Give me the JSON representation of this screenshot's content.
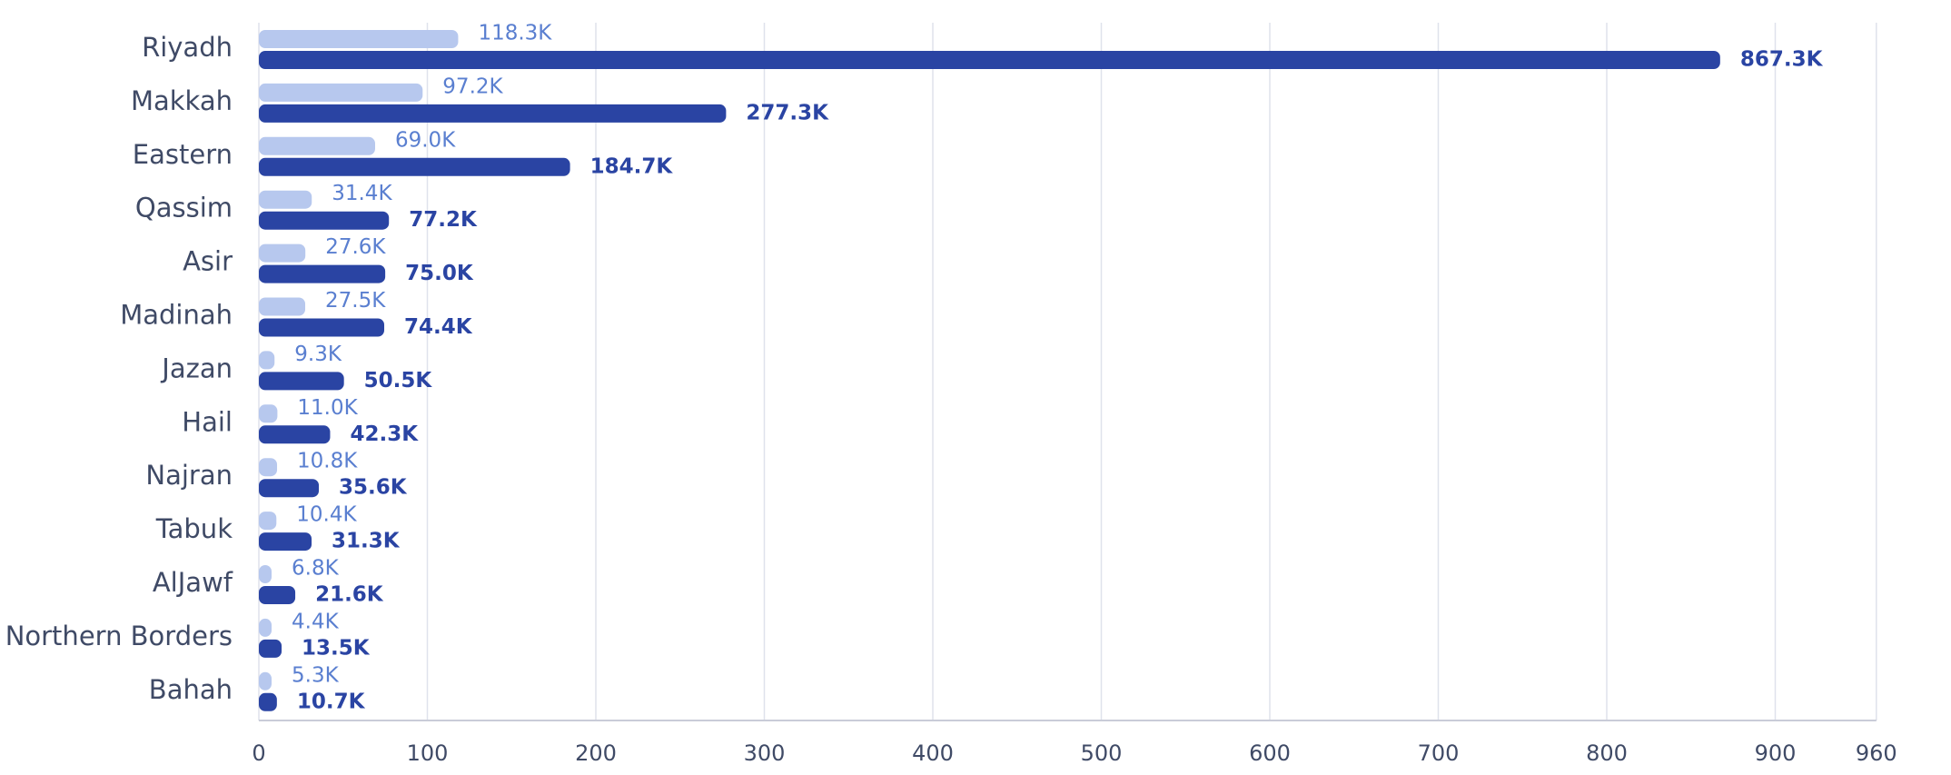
{
  "chart_data": {
    "type": "bar",
    "orientation": "horizontal",
    "title": "",
    "xlabel": "",
    "ylabel": "",
    "xlim": [
      0,
      960
    ],
    "x_ticks": [
      0,
      100,
      200,
      300,
      400,
      500,
      600,
      700,
      800,
      900,
      960
    ],
    "grid": true,
    "categories": [
      "Riyadh",
      "Makkah",
      "Eastern",
      "Qassim",
      "Asir",
      "Madinah",
      "Jazan",
      "Hail",
      "Najran",
      "Tabuk",
      "AlJawf",
      "Northern Borders",
      "Bahah"
    ],
    "series": [
      {
        "color": "#b7c8ee",
        "values": [
          118.3,
          97.2,
          69.0,
          31.4,
          27.6,
          27.5,
          9.3,
          11.0,
          10.8,
          10.4,
          6.8,
          4.4,
          5.3
        ],
        "labels": [
          "118.3K",
          "97.2K",
          "69.0K",
          "31.4K",
          "27.6K",
          "27.5K",
          "9.3K",
          "11.0K",
          "10.8K",
          "10.4K",
          "6.8K",
          "4.4K",
          "5.3K"
        ]
      },
      {
        "color": "#2a44a3",
        "values": [
          867.3,
          277.3,
          184.7,
          77.2,
          75.0,
          74.4,
          50.5,
          42.3,
          35.6,
          31.3,
          21.6,
          13.5,
          10.7
        ],
        "labels": [
          "867.3K",
          "277.3K",
          "184.7K",
          "77.2K",
          "75.0K",
          "74.4K",
          "50.5K",
          "42.3K",
          "35.6K",
          "31.3K",
          "21.6K",
          "13.5K",
          "10.7K"
        ]
      }
    ]
  }
}
